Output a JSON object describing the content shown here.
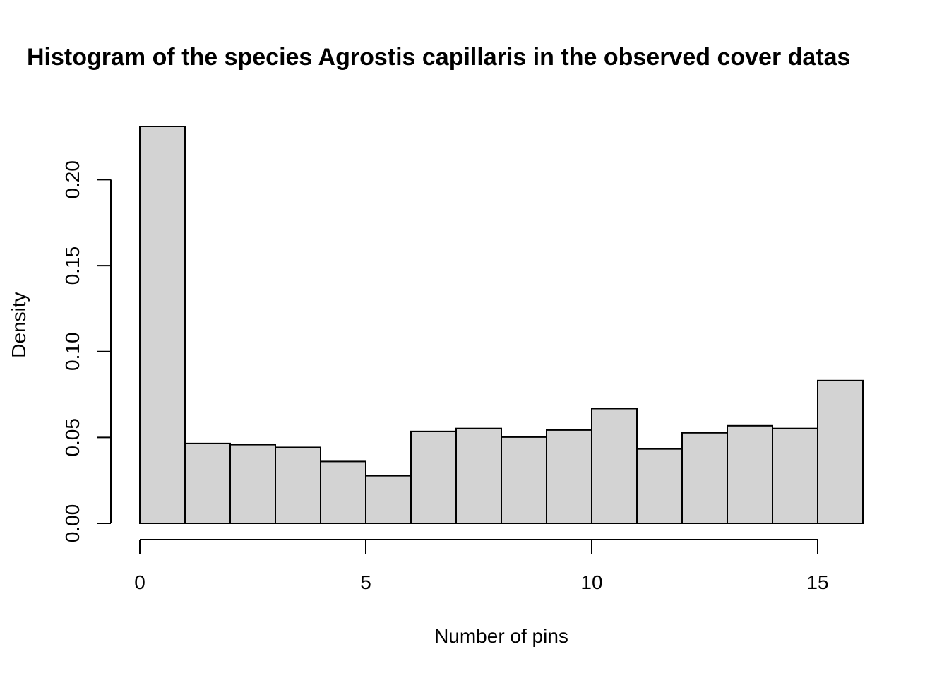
{
  "chart_data": {
    "type": "bar",
    "title": "Histogram of the species Agrostis capillaris in the observed cover datas",
    "xlabel": "Number of pins",
    "ylabel": "Density",
    "bins": [
      {
        "start": 0,
        "end": 1,
        "value": 0.231
      },
      {
        "start": 1,
        "end": 2,
        "value": 0.0465
      },
      {
        "start": 2,
        "end": 3,
        "value": 0.0458
      },
      {
        "start": 3,
        "end": 4,
        "value": 0.0442
      },
      {
        "start": 4,
        "end": 5,
        "value": 0.036
      },
      {
        "start": 5,
        "end": 6,
        "value": 0.0277
      },
      {
        "start": 6,
        "end": 7,
        "value": 0.0535
      },
      {
        "start": 7,
        "end": 8,
        "value": 0.0552
      },
      {
        "start": 8,
        "end": 9,
        "value": 0.0502
      },
      {
        "start": 9,
        "end": 10,
        "value": 0.0543
      },
      {
        "start": 10,
        "end": 11,
        "value": 0.0668
      },
      {
        "start": 11,
        "end": 12,
        "value": 0.0433
      },
      {
        "start": 12,
        "end": 13,
        "value": 0.0527
      },
      {
        "start": 13,
        "end": 14,
        "value": 0.0568
      },
      {
        "start": 14,
        "end": 15,
        "value": 0.0552
      },
      {
        "start": 15,
        "end": 16,
        "value": 0.0831
      }
    ],
    "xlim": [
      0,
      16
    ],
    "ylim": [
      0,
      0.231
    ],
    "x_ticks": [
      0,
      5,
      10,
      15
    ],
    "x_tick_labels": [
      "0",
      "5",
      "10",
      "15"
    ],
    "y_ticks": [
      0,
      0.05,
      0.1,
      0.15,
      0.2
    ],
    "y_tick_labels": [
      "0.00",
      "0.05",
      "0.10",
      "0.15",
      "0.20"
    ],
    "grid": false,
    "legend": "none",
    "colors": {
      "bar_fill": "#d3d3d3",
      "bar_stroke": "#000000",
      "axis": "#000000",
      "text": "#000000",
      "background": "#ffffff"
    }
  }
}
